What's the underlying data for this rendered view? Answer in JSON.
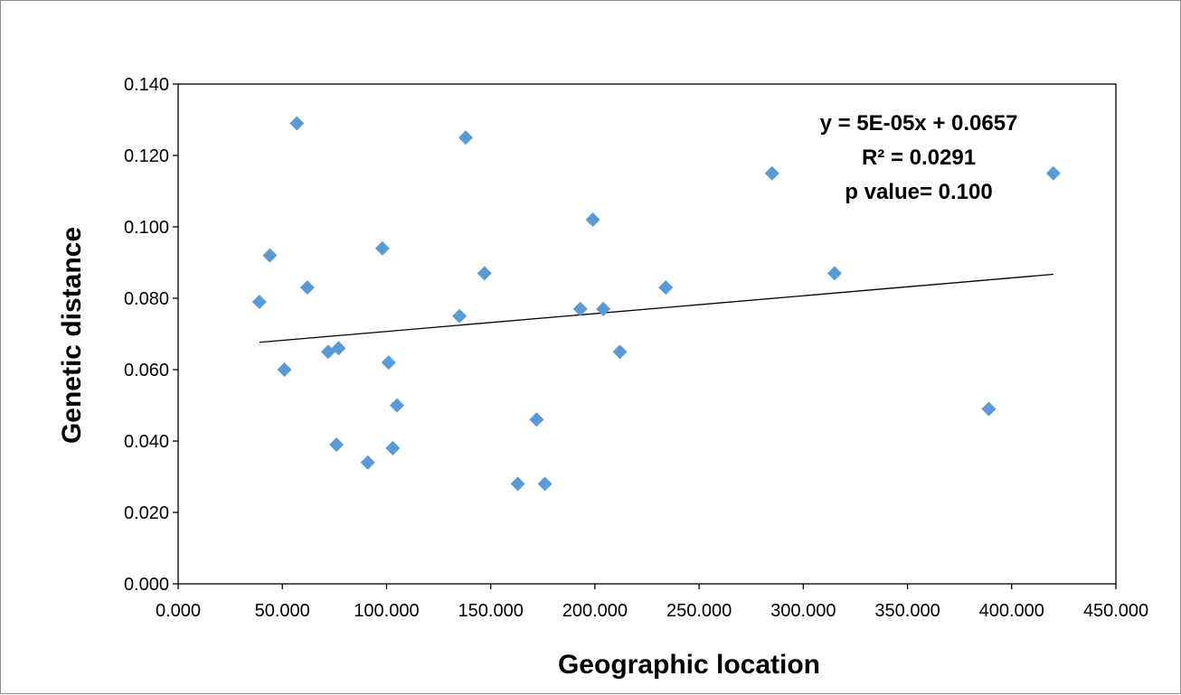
{
  "chart_data": {
    "type": "scatter",
    "title": "",
    "xlabel": "Geographic location",
    "ylabel": "Genetic distance",
    "xlim": [
      0,
      450
    ],
    "ylim": [
      0,
      0.14
    ],
    "x_ticks": [
      "0.000",
      "50.000",
      "100.000",
      "150.000",
      "200.000",
      "250.000",
      "300.000",
      "350.000",
      "400.000",
      "450.000"
    ],
    "y_ticks": [
      "0.000",
      "0.020",
      "0.040",
      "0.060",
      "0.080",
      "0.100",
      "0.120",
      "0.140"
    ],
    "grid": false,
    "legend": "none",
    "marker": "diamond",
    "marker_color": "#5b9bd5",
    "series": [
      {
        "x": [
          39,
          44,
          51,
          57,
          62,
          72,
          76,
          77,
          91,
          98,
          101,
          103,
          105,
          135,
          138,
          147,
          163,
          172,
          176,
          193,
          199,
          204,
          212,
          234,
          285,
          315,
          389,
          420
        ],
        "y": [
          0.079,
          0.092,
          0.06,
          0.129,
          0.083,
          0.065,
          0.039,
          0.066,
          0.034,
          0.094,
          0.062,
          0.038,
          0.05,
          0.075,
          0.125,
          0.087,
          0.028,
          0.046,
          0.028,
          0.077,
          0.102,
          0.077,
          0.065,
          0.083,
          0.115,
          0.087,
          0.049,
          0.115
        ]
      }
    ],
    "trendline": {
      "type": "linear",
      "slope": 5e-05,
      "intercept": 0.0657,
      "x_range": [
        39,
        420
      ],
      "color": "#000000"
    },
    "annotations": [
      "y = 5E-05x + 0.0657",
      "R² = 0.0291",
      "p value= 0.100"
    ]
  }
}
